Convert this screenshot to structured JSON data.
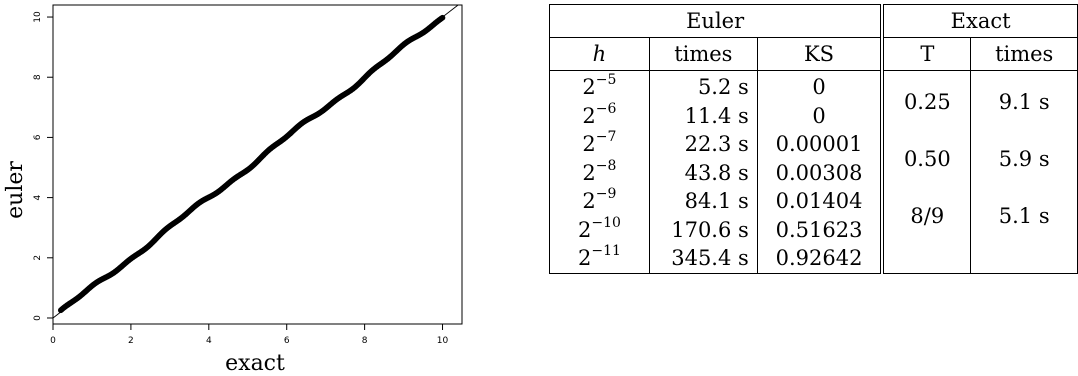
{
  "chart_data": {
    "type": "scatter",
    "xlabel": "exact",
    "ylabel": "euler",
    "xlim": [
      0,
      10.5
    ],
    "ylim": [
      -0.2,
      10.4
    ],
    "x_ticks": [
      "0",
      "2",
      "4",
      "6",
      "8",
      "10"
    ],
    "y_ticks": [
      "0",
      "2",
      "4",
      "6",
      "8",
      "10"
    ],
    "reference_line": "y = x",
    "points_range": [
      0.2,
      10.0
    ],
    "marker_color": "#000000"
  },
  "table": {
    "group_headers": [
      {
        "label": "Euler",
        "span": 3
      },
      {
        "label": "Exact",
        "span": 2
      }
    ],
    "column_headers": [
      "h",
      "times",
      "KS",
      "T",
      "times"
    ],
    "rows": [
      {
        "h_base": "2",
        "h_exp": "−5",
        "time": "5.2 s",
        "ks": "0"
      },
      {
        "h_base": "2",
        "h_exp": "−6",
        "time": "11.4 s",
        "ks": "0"
      },
      {
        "h_base": "2",
        "h_exp": "−7",
        "time": "22.3 s",
        "ks": "0.00001"
      },
      {
        "h_base": "2",
        "h_exp": "−8",
        "time": "43.8 s",
        "ks": "0.00308"
      },
      {
        "h_base": "2",
        "h_exp": "−9",
        "time": "84.1 s",
        "ks": "0.01404"
      },
      {
        "h_base": "2",
        "h_exp": "−10",
        "time": "170.6 s",
        "ks": "0.51623"
      },
      {
        "h_base": "2",
        "h_exp": "−11",
        "time": "345.4 s",
        "ks": "0.92642"
      }
    ],
    "exact": [
      {
        "T": "0.25",
        "time": "9.1 s"
      },
      {
        "T": "0.50",
        "time": "5.9 s"
      },
      {
        "T": "8/9",
        "time": "5.1 s"
      }
    ]
  }
}
